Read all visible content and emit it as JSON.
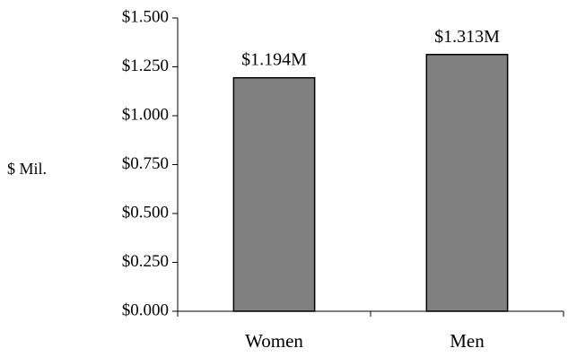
{
  "chart_data": {
    "type": "bar",
    "categories": [
      "Women",
      "Men"
    ],
    "values": [
      1.194,
      1.313
    ],
    "data_labels": [
      "$1.194M",
      "$1.313M"
    ],
    "title": "",
    "xlabel": "",
    "ylabel": "$ Mil.",
    "ylim": [
      0,
      1.5
    ],
    "y_ticks": [
      0,
      0.25,
      0.5,
      0.75,
      1.0,
      1.25,
      1.5
    ],
    "y_tick_labels": [
      "$0.000",
      "$0.250",
      "$0.500",
      "$0.750",
      "$1.000",
      "$1.250",
      "$1.500"
    ],
    "bar_color": "#808080",
    "grid": false,
    "legend": "none"
  }
}
